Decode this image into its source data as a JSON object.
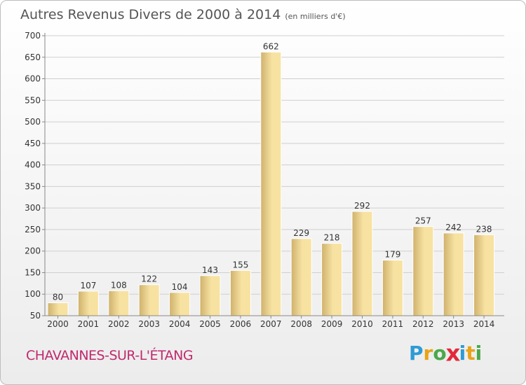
{
  "title": "Autres Revenus Divers de 2000 à 2014",
  "subtitle": "(en milliers d'€)",
  "commune": "CHAVANNES-SUR-L'ÉTANG",
  "logo": {
    "letters": [
      "P",
      "r",
      "o",
      "x",
      "i",
      "t",
      "i"
    ],
    "colors": [
      "#2e9bd6",
      "#e8a317",
      "#4aa84a",
      "#e2283a",
      "#2e9bd6",
      "#e8a317",
      "#4aa84a"
    ]
  },
  "colors": {
    "bar_light": "#f7e2a2",
    "bar_dark": "#cfb16c",
    "grid": "#cfcfcf",
    "commune": "#c02a6e"
  },
  "chart_data": {
    "type": "bar",
    "title": "Autres Revenus Divers de 2000 à 2014",
    "subtitle": "(en milliers d'€)",
    "categories": [
      "2000",
      "2001",
      "2002",
      "2003",
      "2004",
      "2005",
      "2006",
      "2007",
      "2008",
      "2009",
      "2010",
      "2011",
      "2012",
      "2013",
      "2014"
    ],
    "values": [
      80,
      107,
      108,
      122,
      104,
      143,
      155,
      662,
      229,
      218,
      292,
      179,
      257,
      242,
      238
    ],
    "ylim": [
      50,
      700
    ],
    "yticks": [
      50,
      100,
      150,
      200,
      250,
      300,
      350,
      400,
      450,
      500,
      550,
      600,
      650,
      700
    ],
    "grid": true
  }
}
